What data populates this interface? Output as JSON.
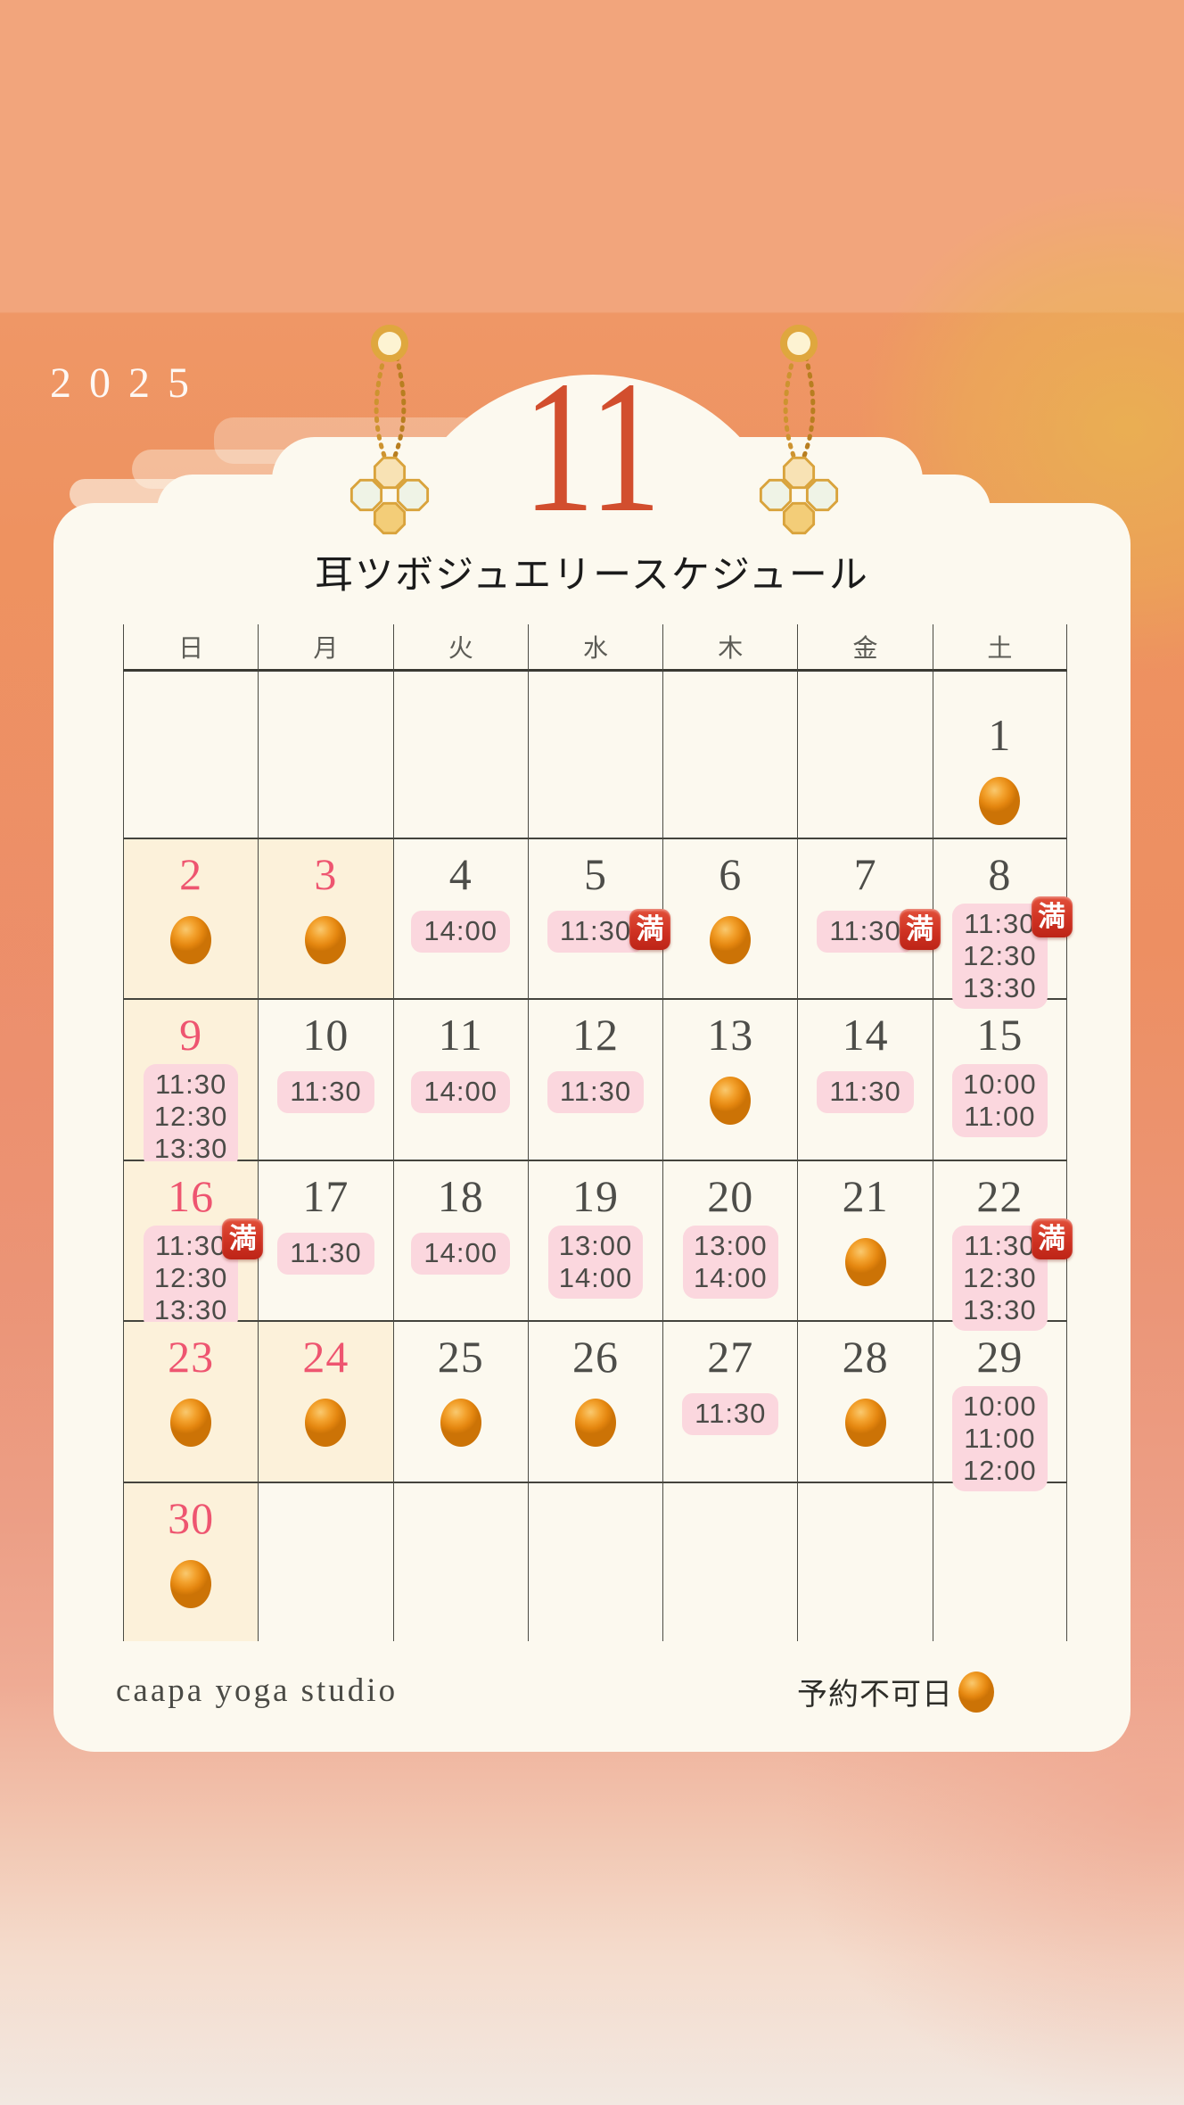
{
  "header": {
    "year": "2025",
    "month": "11",
    "title": "耳ツボジュエリースケジュール"
  },
  "calendar": {
    "weekdays": [
      "日",
      "月",
      "火",
      "水",
      "木",
      "金",
      "土"
    ],
    "weeks": [
      [
        null,
        null,
        null,
        null,
        null,
        null,
        {
          "day": "1",
          "marker": "circle"
        }
      ],
      [
        {
          "day": "2",
          "holiday": true,
          "marker": "circle"
        },
        {
          "day": "3",
          "holiday": true,
          "marker": "circle"
        },
        {
          "day": "4",
          "times": [
            "14:00"
          ]
        },
        {
          "day": "5",
          "times": [
            "11:30"
          ],
          "full": true
        },
        {
          "day": "6",
          "marker": "circle"
        },
        {
          "day": "7",
          "times": [
            "11:30"
          ],
          "full": true
        },
        {
          "day": "8",
          "times": [
            "11:30",
            "12:30",
            "13:30"
          ],
          "full": true
        }
      ],
      [
        {
          "day": "9",
          "holiday": true,
          "times": [
            "11:30",
            "12:30",
            "13:30"
          ]
        },
        {
          "day": "10",
          "times": [
            "11:30"
          ]
        },
        {
          "day": "11",
          "times": [
            "14:00"
          ]
        },
        {
          "day": "12",
          "times": [
            "11:30"
          ]
        },
        {
          "day": "13",
          "marker": "circle"
        },
        {
          "day": "14",
          "times": [
            "11:30"
          ]
        },
        {
          "day": "15",
          "times": [
            "10:00",
            "11:00"
          ]
        }
      ],
      [
        {
          "day": "16",
          "holiday": true,
          "times": [
            "11:30",
            "12:30",
            "13:30"
          ],
          "full": true
        },
        {
          "day": "17",
          "times": [
            "11:30"
          ]
        },
        {
          "day": "18",
          "times": [
            "14:00"
          ]
        },
        {
          "day": "19",
          "times": [
            "13:00",
            "14:00"
          ]
        },
        {
          "day": "20",
          "times": [
            "13:00",
            "14:00"
          ]
        },
        {
          "day": "21",
          "marker": "circle"
        },
        {
          "day": "22",
          "times": [
            "11:30",
            "12:30",
            "13:30"
          ],
          "full": true
        }
      ],
      [
        {
          "day": "23",
          "holiday": true,
          "marker": "circle"
        },
        {
          "day": "24",
          "holiday": true,
          "marker": "circle"
        },
        {
          "day": "25",
          "marker": "circle"
        },
        {
          "day": "26",
          "marker": "circle"
        },
        {
          "day": "27",
          "times": [
            "11:30"
          ]
        },
        {
          "day": "28",
          "marker": "circle"
        },
        {
          "day": "29",
          "times": [
            "10:00",
            "11:00",
            "12:00"
          ]
        }
      ],
      [
        {
          "day": "30",
          "holiday": true,
          "marker": "circle"
        },
        null,
        null,
        null,
        null,
        null,
        null
      ]
    ]
  },
  "badges": {
    "full_label": "満"
  },
  "footer": {
    "studio": "caapa yoga studio",
    "legend_label": "予約不可日"
  },
  "colors": {
    "accent_red": "#d24e2e",
    "holiday_red": "#ee5570",
    "badge_pink": "#fbd7de",
    "full_red": "#cf3222",
    "unavailable_orange": "#e4860f",
    "holiday_cell_cream": "#fcf1da",
    "card_ivory": "#fcf9ef",
    "background_orange": "#ee9260"
  }
}
